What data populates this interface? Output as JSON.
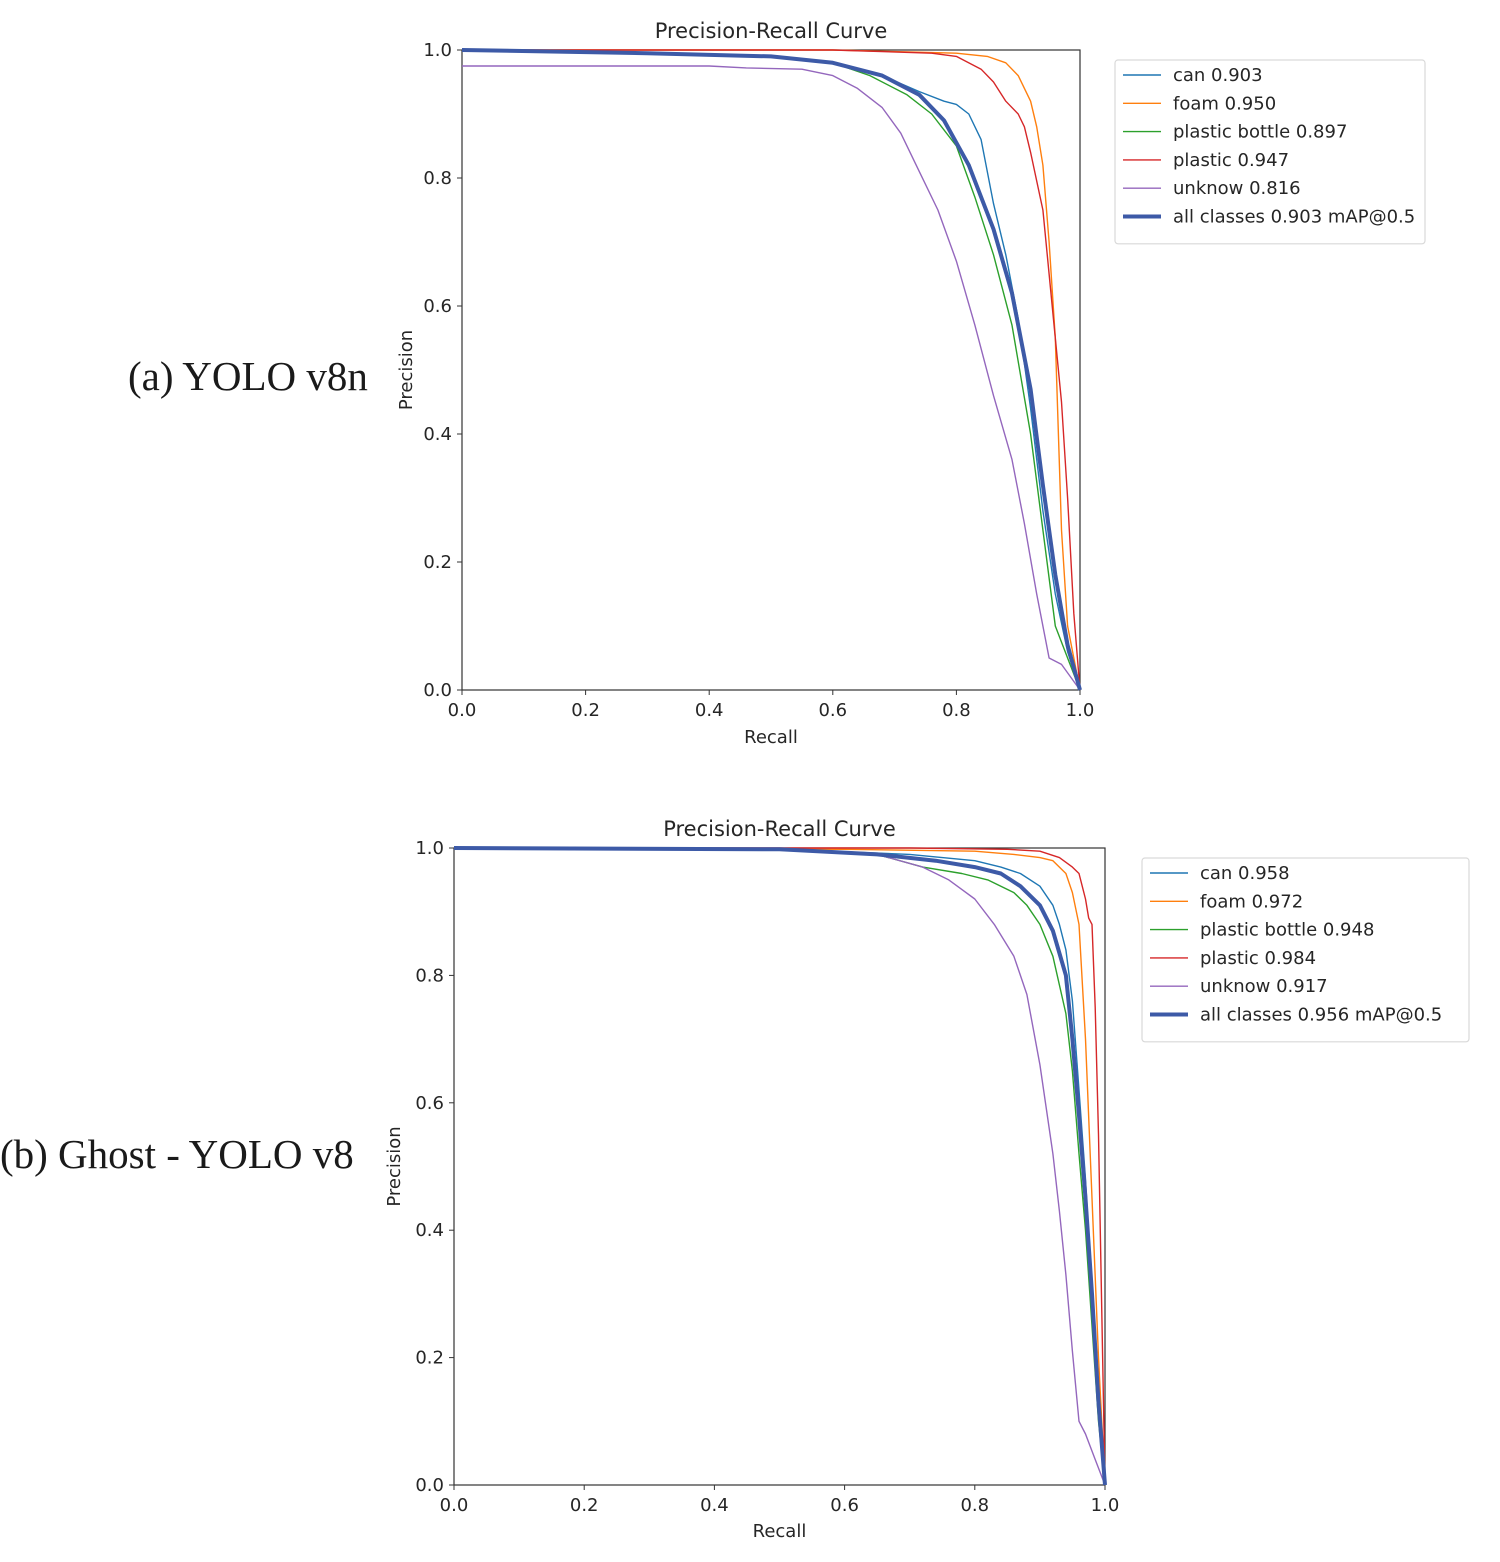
{
  "panels": [
    {
      "label": "(a) YOLO v8n"
    },
    {
      "label": "(b) Ghost - YOLO v8"
    }
  ],
  "chart_data": [
    {
      "type": "line",
      "title": "Precision-Recall Curve",
      "xlabel": "Recall",
      "ylabel": "Precision",
      "xlim": [
        0,
        1
      ],
      "ylim": [
        0,
        1
      ],
      "xticks": [
        "0.0",
        "0.2",
        "0.4",
        "0.6",
        "0.8",
        "1.0"
      ],
      "yticks": [
        "0.0",
        "0.2",
        "0.4",
        "0.6",
        "0.8",
        "1.0"
      ],
      "grid": false,
      "legend_position": "outside-right",
      "series": [
        {
          "name": "can 0.903",
          "color": "#1f77b4",
          "width": 1.4,
          "x": [
            0,
            0.3,
            0.5,
            0.6,
            0.68,
            0.74,
            0.78,
            0.8,
            0.82,
            0.84,
            0.86,
            0.88,
            0.9,
            0.92,
            0.94,
            0.96,
            0.98,
            1.0
          ],
          "y": [
            1.0,
            0.995,
            0.99,
            0.98,
            0.96,
            0.935,
            0.92,
            0.915,
            0.9,
            0.86,
            0.76,
            0.68,
            0.58,
            0.44,
            0.28,
            0.15,
            0.06,
            0.0
          ]
        },
        {
          "name": "foam 0.950",
          "color": "#ff7f0e",
          "width": 1.4,
          "x": [
            0,
            0.6,
            0.8,
            0.85,
            0.88,
            0.9,
            0.92,
            0.93,
            0.94,
            0.95,
            0.96,
            0.965,
            0.97,
            0.98,
            1.0
          ],
          "y": [
            1.0,
            1.0,
            0.995,
            0.99,
            0.98,
            0.96,
            0.92,
            0.88,
            0.82,
            0.7,
            0.55,
            0.4,
            0.25,
            0.1,
            0.0
          ]
        },
        {
          "name": "plastic bottle 0.897",
          "color": "#2ca02c",
          "width": 1.4,
          "x": [
            0,
            0.3,
            0.5,
            0.6,
            0.66,
            0.72,
            0.76,
            0.8,
            0.83,
            0.86,
            0.89,
            0.92,
            0.94,
            0.96,
            0.98,
            1.0
          ],
          "y": [
            1.0,
            0.995,
            0.99,
            0.98,
            0.96,
            0.93,
            0.9,
            0.85,
            0.77,
            0.68,
            0.57,
            0.4,
            0.25,
            0.1,
            0.05,
            0.0
          ]
        },
        {
          "name": "plastic 0.947",
          "color": "#d62728",
          "width": 1.4,
          "x": [
            0,
            0.6,
            0.76,
            0.8,
            0.84,
            0.86,
            0.88,
            0.9,
            0.91,
            0.92,
            0.94,
            0.95,
            0.96,
            0.97,
            0.98,
            0.99,
            1.0
          ],
          "y": [
            1.0,
            1.0,
            0.995,
            0.99,
            0.97,
            0.95,
            0.92,
            0.9,
            0.88,
            0.84,
            0.75,
            0.65,
            0.55,
            0.45,
            0.3,
            0.12,
            0.0
          ]
        },
        {
          "name": "unknow 0.816",
          "color": "#9467bd",
          "width": 1.4,
          "x": [
            0,
            0.4,
            0.46,
            0.55,
            0.6,
            0.64,
            0.68,
            0.71,
            0.74,
            0.77,
            0.8,
            0.83,
            0.86,
            0.89,
            0.91,
            0.93,
            0.95,
            0.97,
            1.0
          ],
          "y": [
            0.975,
            0.975,
            0.972,
            0.97,
            0.96,
            0.94,
            0.91,
            0.87,
            0.81,
            0.75,
            0.67,
            0.57,
            0.46,
            0.36,
            0.26,
            0.15,
            0.05,
            0.04,
            0.0
          ]
        },
        {
          "name": "all classes 0.903 mAP@0.5",
          "color": "#3d5aa7",
          "width": 4,
          "x": [
            0,
            0.3,
            0.5,
            0.6,
            0.68,
            0.74,
            0.78,
            0.82,
            0.86,
            0.89,
            0.92,
            0.94,
            0.96,
            0.98,
            1.0
          ],
          "y": [
            1.0,
            0.995,
            0.99,
            0.98,
            0.96,
            0.93,
            0.89,
            0.82,
            0.72,
            0.62,
            0.47,
            0.32,
            0.18,
            0.07,
            0.0
          ]
        }
      ]
    },
    {
      "type": "line",
      "title": "Precision-Recall Curve",
      "xlabel": "Recall",
      "ylabel": "Precision",
      "xlim": [
        0,
        1
      ],
      "ylim": [
        0,
        1
      ],
      "xticks": [
        "0.0",
        "0.2",
        "0.4",
        "0.6",
        "0.8",
        "1.0"
      ],
      "yticks": [
        "0.0",
        "0.2",
        "0.4",
        "0.6",
        "0.8",
        "1.0"
      ],
      "grid": false,
      "legend_position": "outside-right",
      "series": [
        {
          "name": "can 0.958",
          "color": "#1f77b4",
          "width": 1.4,
          "x": [
            0,
            0.5,
            0.7,
            0.8,
            0.84,
            0.87,
            0.9,
            0.92,
            0.93,
            0.94,
            0.95,
            0.96,
            0.97,
            0.98,
            0.99,
            1.0
          ],
          "y": [
            1.0,
            0.998,
            0.99,
            0.98,
            0.97,
            0.96,
            0.94,
            0.91,
            0.88,
            0.84,
            0.76,
            0.62,
            0.48,
            0.3,
            0.12,
            0.0
          ]
        },
        {
          "name": "foam 0.972",
          "color": "#ff7f0e",
          "width": 1.4,
          "x": [
            0,
            0.6,
            0.8,
            0.86,
            0.9,
            0.92,
            0.94,
            0.95,
            0.96,
            0.97,
            0.98,
            0.99,
            1.0
          ],
          "y": [
            1.0,
            0.998,
            0.995,
            0.99,
            0.985,
            0.98,
            0.96,
            0.93,
            0.88,
            0.7,
            0.45,
            0.2,
            0.0
          ]
        },
        {
          "name": "plastic bottle 0.948",
          "color": "#2ca02c",
          "width": 1.4,
          "x": [
            0,
            0.5,
            0.65,
            0.72,
            0.78,
            0.82,
            0.86,
            0.88,
            0.9,
            0.92,
            0.94,
            0.95,
            0.96,
            0.97,
            0.98,
            0.99,
            1.0
          ],
          "y": [
            1.0,
            0.998,
            0.99,
            0.97,
            0.96,
            0.95,
            0.93,
            0.91,
            0.88,
            0.83,
            0.74,
            0.65,
            0.52,
            0.4,
            0.25,
            0.1,
            0.0
          ]
        },
        {
          "name": "plastic 0.984",
          "color": "#d62728",
          "width": 1.4,
          "x": [
            0,
            0.7,
            0.85,
            0.9,
            0.93,
            0.95,
            0.96,
            0.97,
            0.975,
            0.98,
            0.985,
            0.99,
            1.0
          ],
          "y": [
            1.0,
            1.0,
            0.998,
            0.995,
            0.985,
            0.97,
            0.96,
            0.92,
            0.89,
            0.88,
            0.75,
            0.55,
            0.0
          ]
        },
        {
          "name": "unknow 0.917",
          "color": "#9467bd",
          "width": 1.4,
          "x": [
            0,
            0.5,
            0.65,
            0.72,
            0.76,
            0.8,
            0.83,
            0.86,
            0.88,
            0.9,
            0.92,
            0.93,
            0.94,
            0.95,
            0.96,
            0.97,
            0.985,
            1.0
          ],
          "y": [
            1.0,
            0.998,
            0.99,
            0.97,
            0.95,
            0.92,
            0.88,
            0.83,
            0.77,
            0.66,
            0.52,
            0.43,
            0.33,
            0.21,
            0.1,
            0.08,
            0.04,
            0.0
          ]
        },
        {
          "name": "all classes 0.956 mAP@0.5",
          "color": "#3d5aa7",
          "width": 4,
          "x": [
            0,
            0.5,
            0.65,
            0.74,
            0.8,
            0.84,
            0.87,
            0.9,
            0.92,
            0.94,
            0.95,
            0.96,
            0.97,
            0.98,
            0.99,
            1.0
          ],
          "y": [
            1.0,
            0.998,
            0.99,
            0.98,
            0.97,
            0.96,
            0.94,
            0.91,
            0.87,
            0.8,
            0.7,
            0.58,
            0.45,
            0.3,
            0.13,
            0.0
          ]
        }
      ]
    }
  ]
}
